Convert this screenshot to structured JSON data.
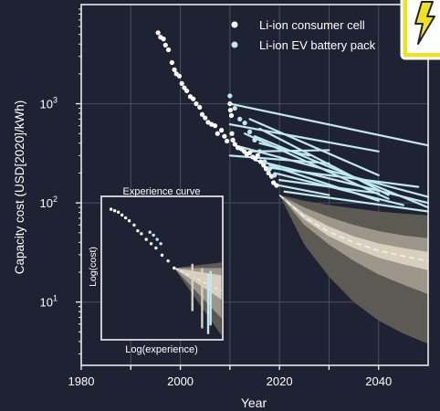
{
  "chart_data": {
    "type": "scatter",
    "xlabel": "Year",
    "ylabel": "Capacity cost (USD[2020]/kWh)",
    "xlim": [
      1980,
      2050
    ],
    "ylim": [
      2.3,
      10000
    ],
    "yscale": "log",
    "x_ticks": [
      1980,
      2000,
      2020,
      2040
    ],
    "x_tick_labels": [
      "1980",
      "2000",
      "2020",
      "2040"
    ],
    "x_ticks_unlabeled": [
      1990,
      2010,
      2030
    ],
    "y_ticks": [
      10,
      100,
      1000
    ],
    "y_tick_labels": [
      {
        "base": "10",
        "exp": "1"
      },
      {
        "base": "10",
        "exp": "2"
      },
      {
        "base": "10",
        "exp": "3"
      }
    ],
    "grid": true,
    "legend_position": "top-right",
    "colors": {
      "background": "#1e2233",
      "consumer": "#ffffff",
      "ev": "#bfe9ef",
      "band_outer": "#5d5953",
      "band_mid": "#9d968b",
      "band_inner": "#d8cfbf",
      "median": "#f4efe6",
      "grid": "#4a4f61",
      "icon_yellow": "#f2e21c"
    },
    "series": [
      {
        "name": "Li-ion consumer cell",
        "marker": "circle",
        "points": [
          [
            1995.5,
            5200
          ],
          [
            1996,
            4700
          ],
          [
            1996.6,
            4500
          ],
          [
            1997,
            3900
          ],
          [
            1997.6,
            3500
          ],
          [
            1998.3,
            2600
          ],
          [
            1998.8,
            2200
          ],
          [
            1999.2,
            2000
          ],
          [
            1999.8,
            1900
          ],
          [
            2000.3,
            1600
          ],
          [
            2000.8,
            1450
          ],
          [
            2001.3,
            1350
          ],
          [
            2002,
            1180
          ],
          [
            2002.6,
            1120
          ],
          [
            2003.2,
            1000
          ],
          [
            2003.9,
            920
          ],
          [
            2004.4,
            780
          ],
          [
            2005,
            720
          ],
          [
            2005.6,
            650
          ],
          [
            2006.3,
            620
          ],
          [
            2007,
            600
          ],
          [
            2007.5,
            500
          ],
          [
            2008.3,
            540
          ],
          [
            2008.9,
            470
          ],
          [
            2009.4,
            420
          ],
          [
            2010,
            1000
          ],
          [
            2010.1,
            860
          ],
          [
            2010.3,
            760
          ],
          [
            2010.4,
            500
          ],
          [
            2010.6,
            430
          ],
          [
            2011,
            390
          ],
          [
            2011.6,
            360
          ],
          [
            2012.3,
            350
          ],
          [
            2012.9,
            330
          ],
          [
            2013.4,
            310
          ],
          [
            2014,
            320
          ],
          [
            2014.6,
            290
          ],
          [
            2015.1,
            280
          ],
          [
            2015.6,
            300
          ],
          [
            2016.2,
            260
          ],
          [
            2016.8,
            240
          ],
          [
            2017.3,
            220
          ],
          [
            2017.8,
            200
          ],
          [
            2018.4,
            185
          ],
          [
            2018.8,
            160
          ],
          [
            2019.4,
            150
          ]
        ]
      },
      {
        "name": "Li-ion EV battery pack",
        "marker": "circle",
        "points": [
          [
            2010,
            1200
          ],
          [
            2011,
            900
          ],
          [
            2012,
            700
          ],
          [
            2013,
            640
          ],
          [
            2014,
            520
          ],
          [
            2015,
            430
          ],
          [
            2016,
            330
          ],
          [
            2017,
            260
          ],
          [
            2018,
            220
          ],
          [
            2019,
            190
          ]
        ]
      }
    ],
    "ev_projection_lines": [
      [
        [
          2010,
          1000
        ],
        [
          2050,
          380
        ]
      ],
      [
        [
          2010,
          620
        ],
        [
          2040,
          330
        ]
      ],
      [
        [
          2011,
          380
        ],
        [
          2050,
          115
        ]
      ],
      [
        [
          2013,
          500
        ],
        [
          2042,
          110
        ]
      ],
      [
        [
          2014,
          700
        ],
        [
          2040,
          190
        ]
      ],
      [
        [
          2014,
          330
        ],
        [
          2030,
          340
        ]
      ],
      [
        [
          2015,
          270
        ],
        [
          2050,
          100
        ]
      ],
      [
        [
          2015,
          470
        ],
        [
          2050,
          90
        ]
      ],
      [
        [
          2016,
          560
        ],
        [
          2042,
          120
        ]
      ],
      [
        [
          2017,
          230
        ],
        [
          2048,
          145
        ]
      ],
      [
        [
          2018,
          240
        ],
        [
          2040,
          105
        ]
      ],
      [
        [
          2019,
          200
        ],
        [
          2045,
          95
        ]
      ],
      [
        [
          2020,
          170
        ],
        [
          2040,
          125
        ]
      ],
      [
        [
          2020,
          150
        ],
        [
          2030,
          120
        ]
      ],
      [
        [
          2021,
          130
        ],
        [
          2050,
          82
        ]
      ],
      [
        [
          2010,
          300
        ],
        [
          2030,
          250
        ]
      ],
      [
        [
          2016,
          400
        ],
        [
          2026,
          300
        ]
      ]
    ],
    "forecast": {
      "years": [
        2020,
        2025,
        2030,
        2035,
        2040,
        2045,
        2050
      ],
      "outer_high": [
        120,
        105,
        95,
        88,
        82,
        78,
        75
      ],
      "outer_low": [
        120,
        38,
        18,
        10,
        6.5,
        4.8,
        3.8
      ],
      "mid_high": [
        120,
        90,
        72,
        60,
        52,
        47,
        44
      ],
      "mid_low": [
        120,
        60,
        38,
        26,
        19,
        15,
        12
      ],
      "inner_high": [
        120,
        78,
        58,
        46,
        39,
        35,
        32
      ],
      "inner_low": [
        120,
        68,
        46,
        35,
        28,
        24,
        21
      ],
      "median": [
        120,
        72,
        51,
        40,
        33,
        29,
        26
      ]
    },
    "inset": {
      "title": "Experience curve",
      "xlabel": "Log(experience)",
      "ylabel": "Log(cost)"
    }
  }
}
